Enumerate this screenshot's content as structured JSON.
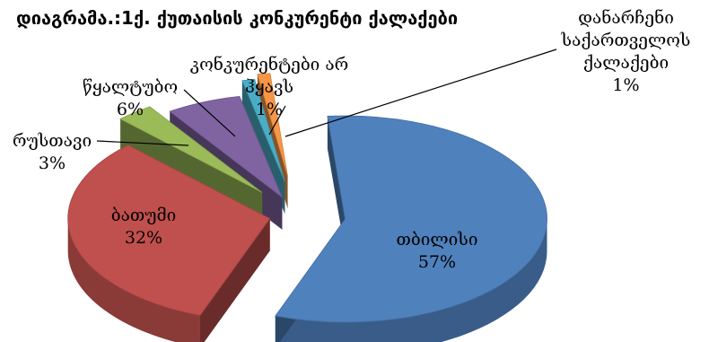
{
  "chart_data": {
    "type": "pie",
    "title": "დიაგრამა.:1ქ. ქუთაისის კონკურენტი ქალაქები",
    "slices": [
      {
        "label": "თბილისი",
        "value": 57,
        "value_label": "57%",
        "color": "#4f81bd"
      },
      {
        "label": "ბათუმი",
        "value": 32,
        "value_label": "32%",
        "color": "#c0504d"
      },
      {
        "label": "რუსთავი",
        "value": 3,
        "value_label": "3%",
        "color": "#9bbb59"
      },
      {
        "label": "წყალტუბო",
        "value": 6,
        "value_label": "6%",
        "color": "#8064a2"
      },
      {
        "label": "კონკურენტები არ ჰყავს",
        "value": 1,
        "value_label": "1%",
        "color": "#4bacc6"
      },
      {
        "label": "დანარჩენი საქართველოს ქალაქები",
        "value": 1,
        "value_label": "1%",
        "color": "#f79646"
      }
    ]
  }
}
